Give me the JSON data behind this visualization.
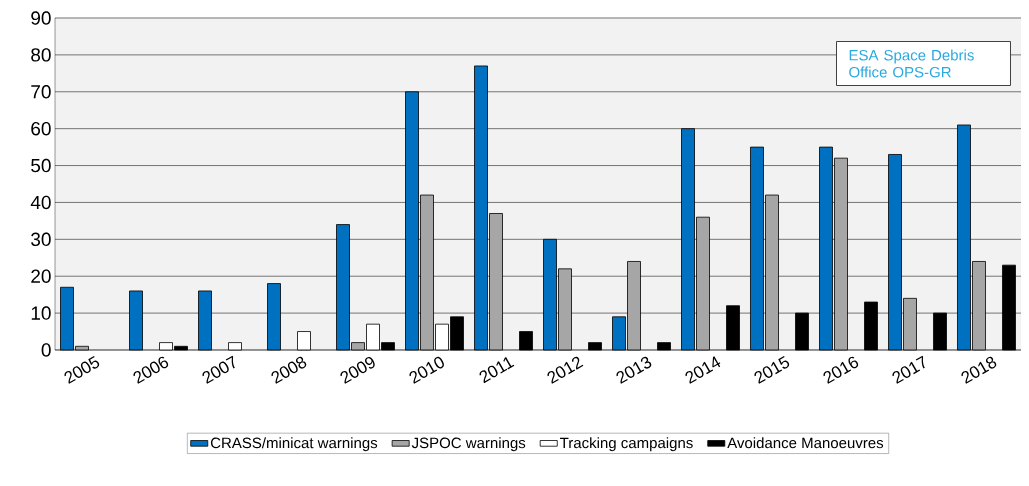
{
  "chart_data": {
    "type": "bar",
    "categories": [
      "2005",
      "2006",
      "2007",
      "2008",
      "2009",
      "2010",
      "2011",
      "2012",
      "2013",
      "2014",
      "2015",
      "2016",
      "2017",
      "2018"
    ],
    "series": [
      {
        "name": "CRASS/minicat warnings",
        "color": "#0070c0",
        "values": [
          17,
          16,
          16,
          18,
          34,
          70,
          77,
          30,
          9,
          60,
          55,
          55,
          53,
          61
        ]
      },
      {
        "name": "JSPOC warnings",
        "color": "#a6a6a6",
        "values": [
          1,
          0,
          0,
          0,
          2,
          42,
          37,
          22,
          24,
          36,
          42,
          52,
          14,
          24
        ]
      },
      {
        "name": "Tracking campaigns",
        "color": "#ffffff",
        "values": [
          0,
          2,
          2,
          5,
          7,
          7,
          0,
          0,
          0,
          0,
          0,
          0,
          0,
          0
        ]
      },
      {
        "name": "Avoidance Manoeuvres",
        "color": "#000000",
        "values": [
          0,
          1,
          0,
          0,
          2,
          9,
          5,
          2,
          2,
          12,
          10,
          13,
          10,
          23
        ]
      }
    ],
    "ylim": [
      0,
      90
    ],
    "yticks": [
      0,
      10,
      20,
      30,
      40,
      50,
      60,
      70,
      80,
      90
    ],
    "grid": "y",
    "legend": "bottom",
    "annotations": [
      "ESA Space Debris Office OPS-GR"
    ]
  }
}
